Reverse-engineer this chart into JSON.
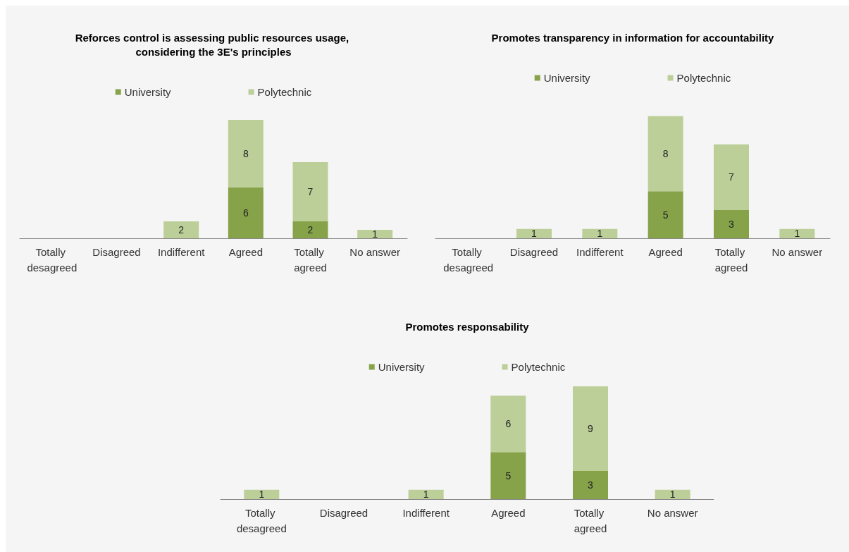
{
  "chart_data": [
    {
      "type": "bar",
      "title": "Reforces control is assessing public resources usage, considering the 3E's principles",
      "categories": [
        "Totally desagreed",
        "Disagreed",
        "Indifferent",
        "Agreed",
        "Totally agreed",
        "No answer"
      ],
      "stacked": true,
      "legend": "top",
      "tick_labels": "x",
      "grid": false,
      "series": [
        {
          "name": "University",
          "color": "#86a34a",
          "values": [
            0,
            0,
            0,
            6,
            2,
            0
          ],
          "value_labels": [
            null,
            null,
            null,
            "6",
            "2",
            null
          ]
        },
        {
          "name": "Polytechnic",
          "color": "#bccf98",
          "values": [
            0,
            0,
            2,
            8,
            7,
            1
          ],
          "value_labels": [
            null,
            null,
            "2",
            "8",
            "7",
            "1"
          ]
        }
      ]
    },
    {
      "type": "bar",
      "title": "Promotes transparency in information for accountability",
      "categories": [
        "Totally desagreed",
        "Disagreed",
        "Indifferent",
        "Agreed",
        "Totally agreed",
        "No answer"
      ],
      "stacked": true,
      "legend": "top",
      "tick_labels": "x",
      "grid": false,
      "series": [
        {
          "name": "University",
          "color": "#86a34a",
          "values": [
            0,
            0,
            0,
            5,
            3,
            0
          ],
          "value_labels": [
            null,
            null,
            null,
            "5",
            "3",
            null
          ]
        },
        {
          "name": "Polytechnic",
          "color": "#bccf98",
          "values": [
            0,
            1,
            1,
            8,
            7,
            1
          ],
          "value_labels": [
            null,
            "1",
            "1",
            "8",
            "7",
            "1"
          ]
        }
      ]
    },
    {
      "type": "bar",
      "title": "Promotes responsability",
      "categories": [
        "Totally desagreed",
        "Disagreed",
        "Indifferent",
        "Agreed",
        "Totally agreed",
        "No answer"
      ],
      "stacked": true,
      "legend": "top",
      "tick_labels": "x",
      "grid": false,
      "series": [
        {
          "name": "University",
          "color": "#86a34a",
          "values": [
            0,
            0,
            0,
            5,
            3,
            0
          ],
          "value_labels": [
            null,
            null,
            null,
            "5",
            "3",
            null
          ]
        },
        {
          "name": "Polytechnic",
          "color": "#bccf98",
          "values": [
            1,
            0,
            1,
            6,
            9,
            1
          ],
          "value_labels": [
            "1",
            null,
            "1",
            "6",
            "9",
            "1"
          ]
        }
      ]
    }
  ]
}
